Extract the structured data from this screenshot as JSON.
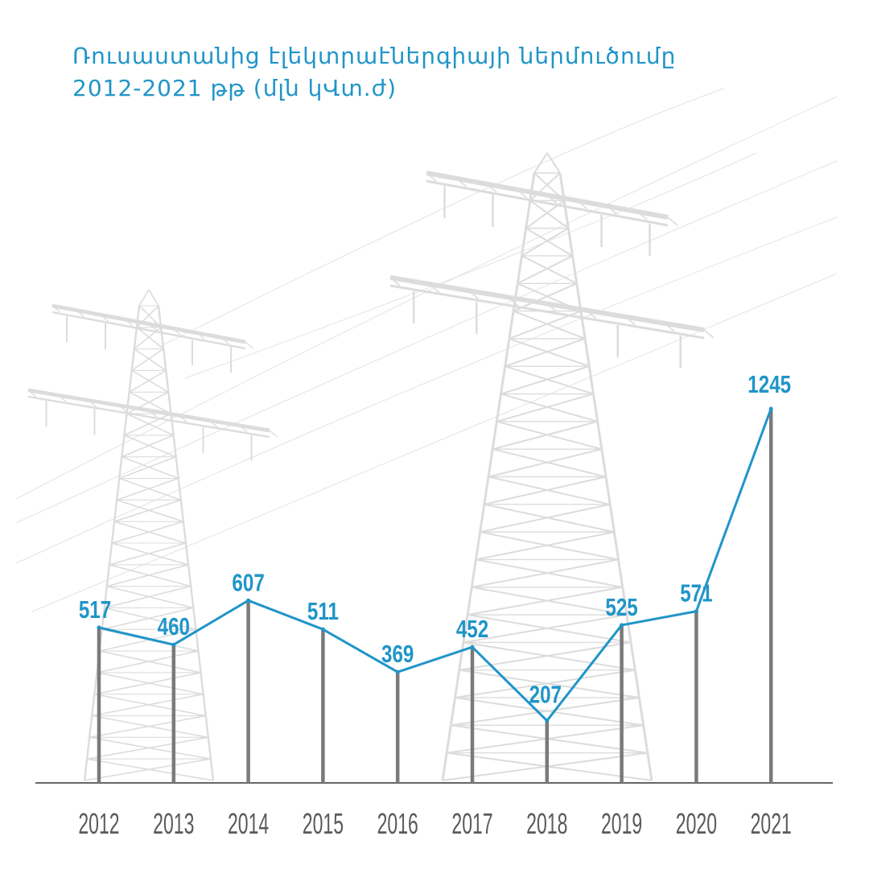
{
  "title": {
    "line1": "Ռուսաստանից էլեկտրաէներգիայի ներմուծումը",
    "line2": "2012-2021 թթ (մլն կՎտ.ժ)"
  },
  "colors": {
    "line": "#1f95c8",
    "stem": "#7a7a7a",
    "axis": "#333333",
    "tower": "#dcdcdc"
  },
  "chart_data": {
    "type": "line",
    "categories": [
      "2012",
      "2013",
      "2014",
      "2015",
      "2016",
      "2017",
      "2018",
      "2019",
      "2020",
      "2021"
    ],
    "values": [
      517,
      460,
      607,
      511,
      369,
      452,
      207,
      525,
      571,
      1245
    ],
    "ylim": [
      0,
      1245
    ],
    "grid": false,
    "legend": "none"
  }
}
